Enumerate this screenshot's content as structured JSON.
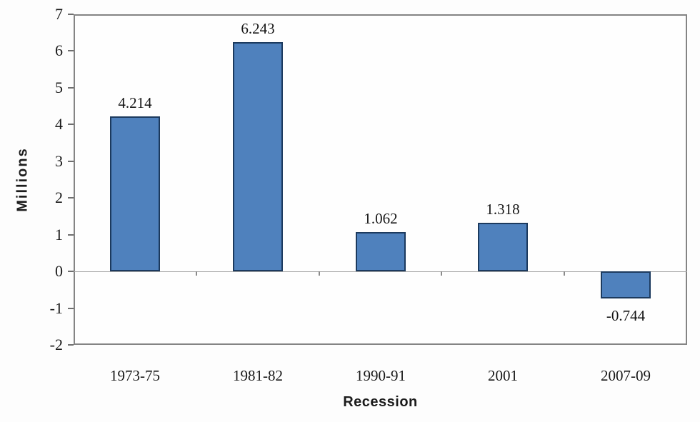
{
  "chart_data": {
    "type": "bar",
    "title": "",
    "categories": [
      "1973-75",
      "1981-82",
      "1990-91",
      "2001",
      "2007-09"
    ],
    "values": [
      4.214,
      6.243,
      1.062,
      1.318,
      -0.744
    ],
    "data_labels": [
      "4.214",
      "6.243",
      "1.062",
      "1.318",
      "-0.744"
    ],
    "xlabel": "Recession",
    "ylabel": "Millions",
    "ylim": [
      -2,
      7
    ],
    "yticks": [
      7,
      6,
      5,
      4,
      3,
      2,
      1,
      0,
      -1,
      -2
    ],
    "grid": false,
    "legend": "none",
    "bar_color": "#4f81bd",
    "bar_border_color": "#1c3a5e",
    "zero_line_color": "#a6a6a6",
    "plot_border_color": "#848484"
  }
}
